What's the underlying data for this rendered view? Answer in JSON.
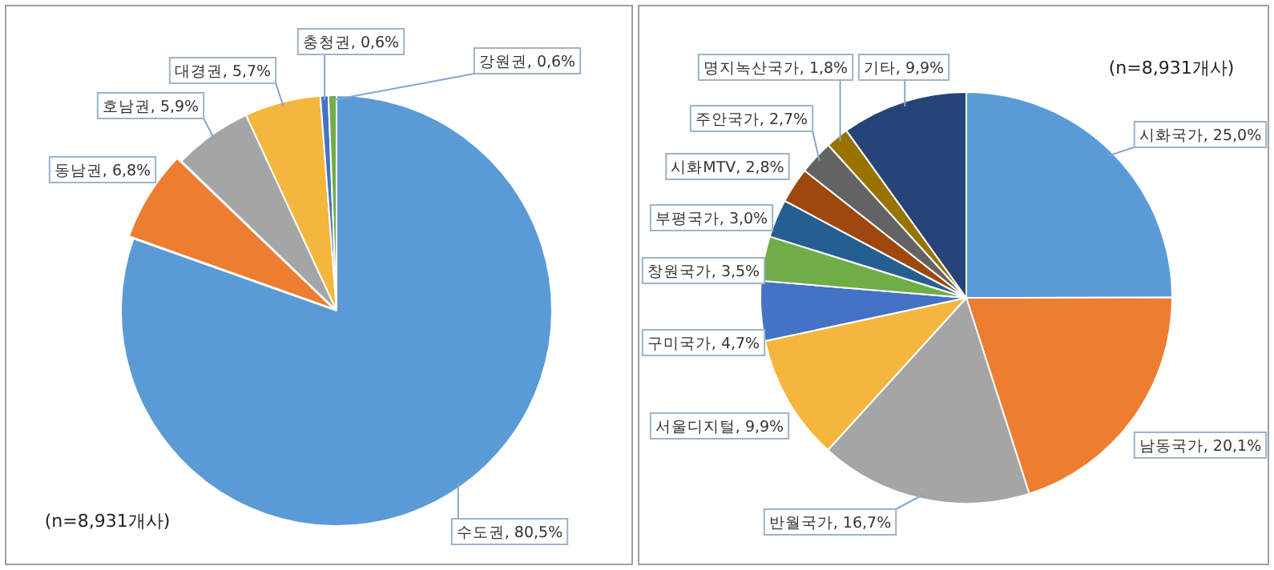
{
  "chart_data": [
    {
      "type": "pie",
      "categories": [
        "수도권",
        "동남권",
        "호남권",
        "대경권",
        "충청권",
        "강원권"
      ],
      "values": [
        80.5,
        6.8,
        5.9,
        5.7,
        0.6,
        0.6
      ],
      "colors": [
        "#5b9bd5",
        "#ed7d31",
        "#a5a5a5",
        "#f4b63c",
        "#4472c4",
        "#70ad47"
      ],
      "value_labels": [
        "80,5%",
        "6,8%",
        "5,9%",
        "5,7%",
        "0,6%",
        "0,6%"
      ],
      "annotations": [
        "(n=8,931개사)"
      ]
    },
    {
      "type": "pie",
      "categories": [
        "시화국가",
        "남동국가",
        "반월국가",
        "서울디지털",
        "구미국가",
        "창원국가",
        "부평국가",
        "시화MTV",
        "주안국가",
        "명지녹산국가",
        "기타"
      ],
      "values": [
        25.0,
        20.1,
        16.7,
        9.9,
        4.7,
        3.5,
        3.0,
        2.8,
        2.7,
        1.8,
        9.9
      ],
      "colors": [
        "#5b9bd5",
        "#ed7d31",
        "#a5a5a5",
        "#f4b63c",
        "#4472c4",
        "#70ad47",
        "#255e91",
        "#9e480e",
        "#636363",
        "#997300",
        "#264478"
      ],
      "value_labels": [
        "25,0%",
        "20,1%",
        "16,7%",
        "9,9%",
        "4,7%",
        "3,5%",
        "3,0%",
        "2,8%",
        "2,7%",
        "1,8%",
        "9,9%"
      ],
      "annotations": [
        "(n=8,931개사)"
      ]
    }
  ]
}
